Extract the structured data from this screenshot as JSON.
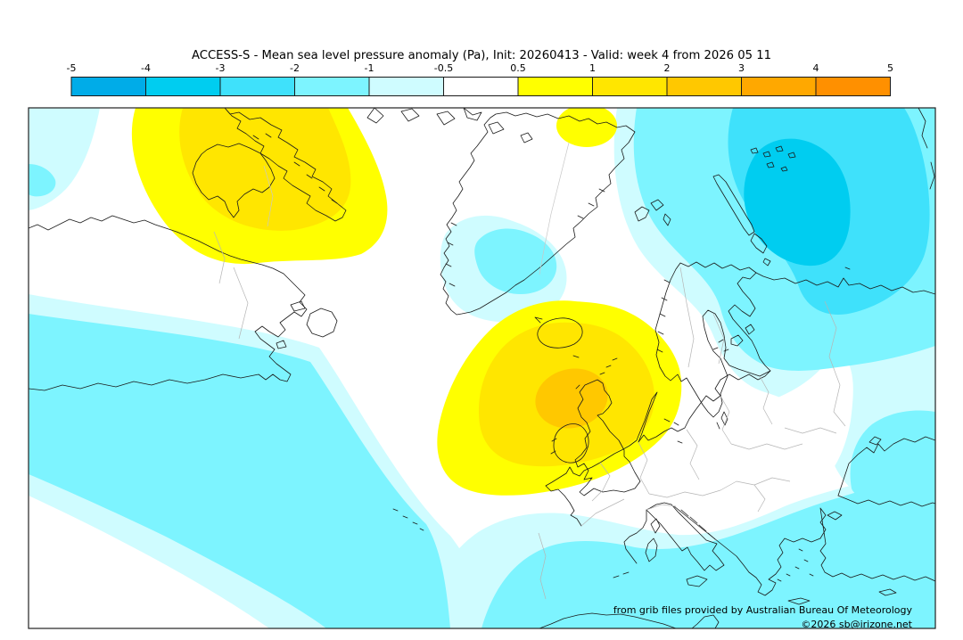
{
  "title": "ACCESS-S - Mean sea level pressure anomaly (Pa), Init: 20260413 - Valid: week 4 from 2026 05 11",
  "colorbar": {
    "tick_labels": [
      "-5",
      "-4",
      "-3",
      "-2",
      "-1",
      "-0.5",
      "0.5",
      "1",
      "2",
      "3",
      "4",
      "5"
    ],
    "segment_colors": [
      "#00ACE8",
      "#00CDF0",
      "#3FE1FB",
      "#7DF4FF",
      "#CFFCFF",
      "#FFFFFF",
      "#FFFF00",
      "#FFE600",
      "#FFC800",
      "#FFA800",
      "#FF9000"
    ]
  },
  "attribution": {
    "provider": "from grib files provided by Australian Bureau Of Meteorology",
    "copyright": "©2026 sb@irizone.net"
  },
  "palette": {
    "neg_0_5": "#CFFCFF",
    "neg_1": "#7DF4FF",
    "neg_2": "#3FE1FB",
    "neg_3": "#00CDF0",
    "neg_4": "#00ACE8",
    "pos_0_5": "#FFFF00",
    "pos_1": "#FFE600",
    "pos_2": "#FFC800",
    "pos_3": "#FFA800",
    "pos_4": "#FF9000",
    "white": "#FFFFFF",
    "land_outline": "#1a1a1a",
    "border_gray": "#b5b5b5",
    "ice_gray": "#c8c8c8",
    "frame": "#222222"
  },
  "map_data": {
    "type": "filled_contour_map",
    "variable": "Mean sea level pressure anomaly (Pa)",
    "model": "ACCESS-S",
    "init_date": "20260413",
    "valid": "week 4 from 2026 05 11",
    "region": "North Atlantic, Greenland, Europe, Barents Sea",
    "contour_levels": [
      -5,
      -4,
      -3,
      -2,
      -1,
      -0.5,
      0.5,
      1,
      2,
      3,
      4,
      5
    ],
    "anomaly_features": [
      {
        "label": "positive anomaly over NE Canada / Hudson Bay",
        "peak_band": "1 to 2"
      },
      {
        "label": "positive anomaly from Iceland to British Isles",
        "peak_band": "2 to 3"
      },
      {
        "label": "small positive patch near NE Greenland coast",
        "peak_band": "0.5 to 1"
      },
      {
        "label": "negative anomaly centered Barents Sea / Novaya Zemlya",
        "peak_band": "-4 to -3"
      },
      {
        "label": "broad negative band across central North Atlantic, Mediterranean and Black Sea",
        "peak_band": "-2 to -1"
      },
      {
        "label": "weak negative patch over southern Greenland",
        "peak_band": "-2 to -1"
      }
    ]
  }
}
